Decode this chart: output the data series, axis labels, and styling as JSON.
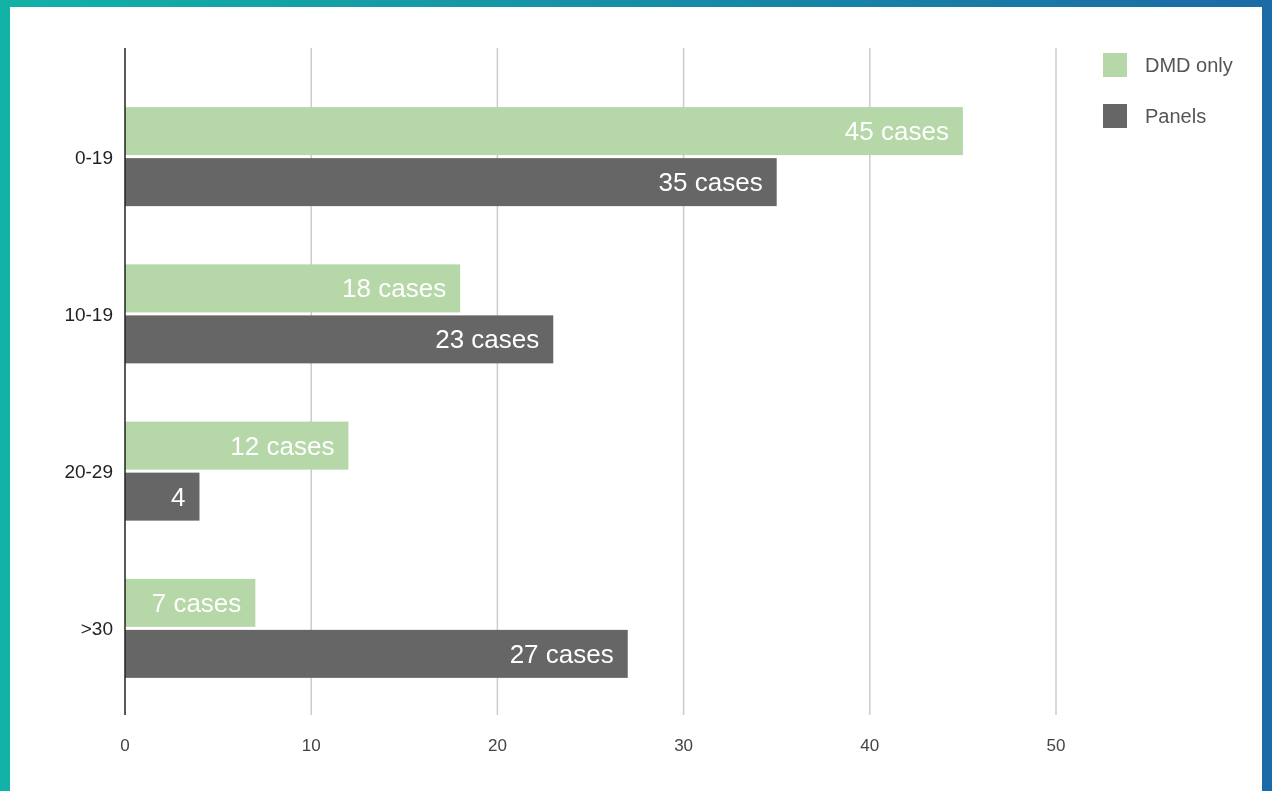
{
  "chart_data": {
    "type": "bar",
    "orientation": "horizontal",
    "categories": [
      "0-19",
      "10-19",
      "20-29",
      ">30"
    ],
    "series": [
      {
        "name": "DMD only",
        "color": "#b6d7a8",
        "values": [
          45,
          18,
          12,
          7
        ],
        "value_labels": [
          "45 cases",
          "18 cases",
          "12 cases",
          "7 cases"
        ]
      },
      {
        "name": "Panels",
        "color": "#666666",
        "values": [
          35,
          23,
          4,
          27
        ],
        "value_labels": [
          "35 cases",
          "23 cases",
          "4",
          "27 cases"
        ]
      }
    ],
    "xlim": [
      0,
      50
    ],
    "xticks": [
      0,
      10,
      20,
      30,
      40,
      50
    ],
    "grid": "x",
    "legend": "top right"
  }
}
